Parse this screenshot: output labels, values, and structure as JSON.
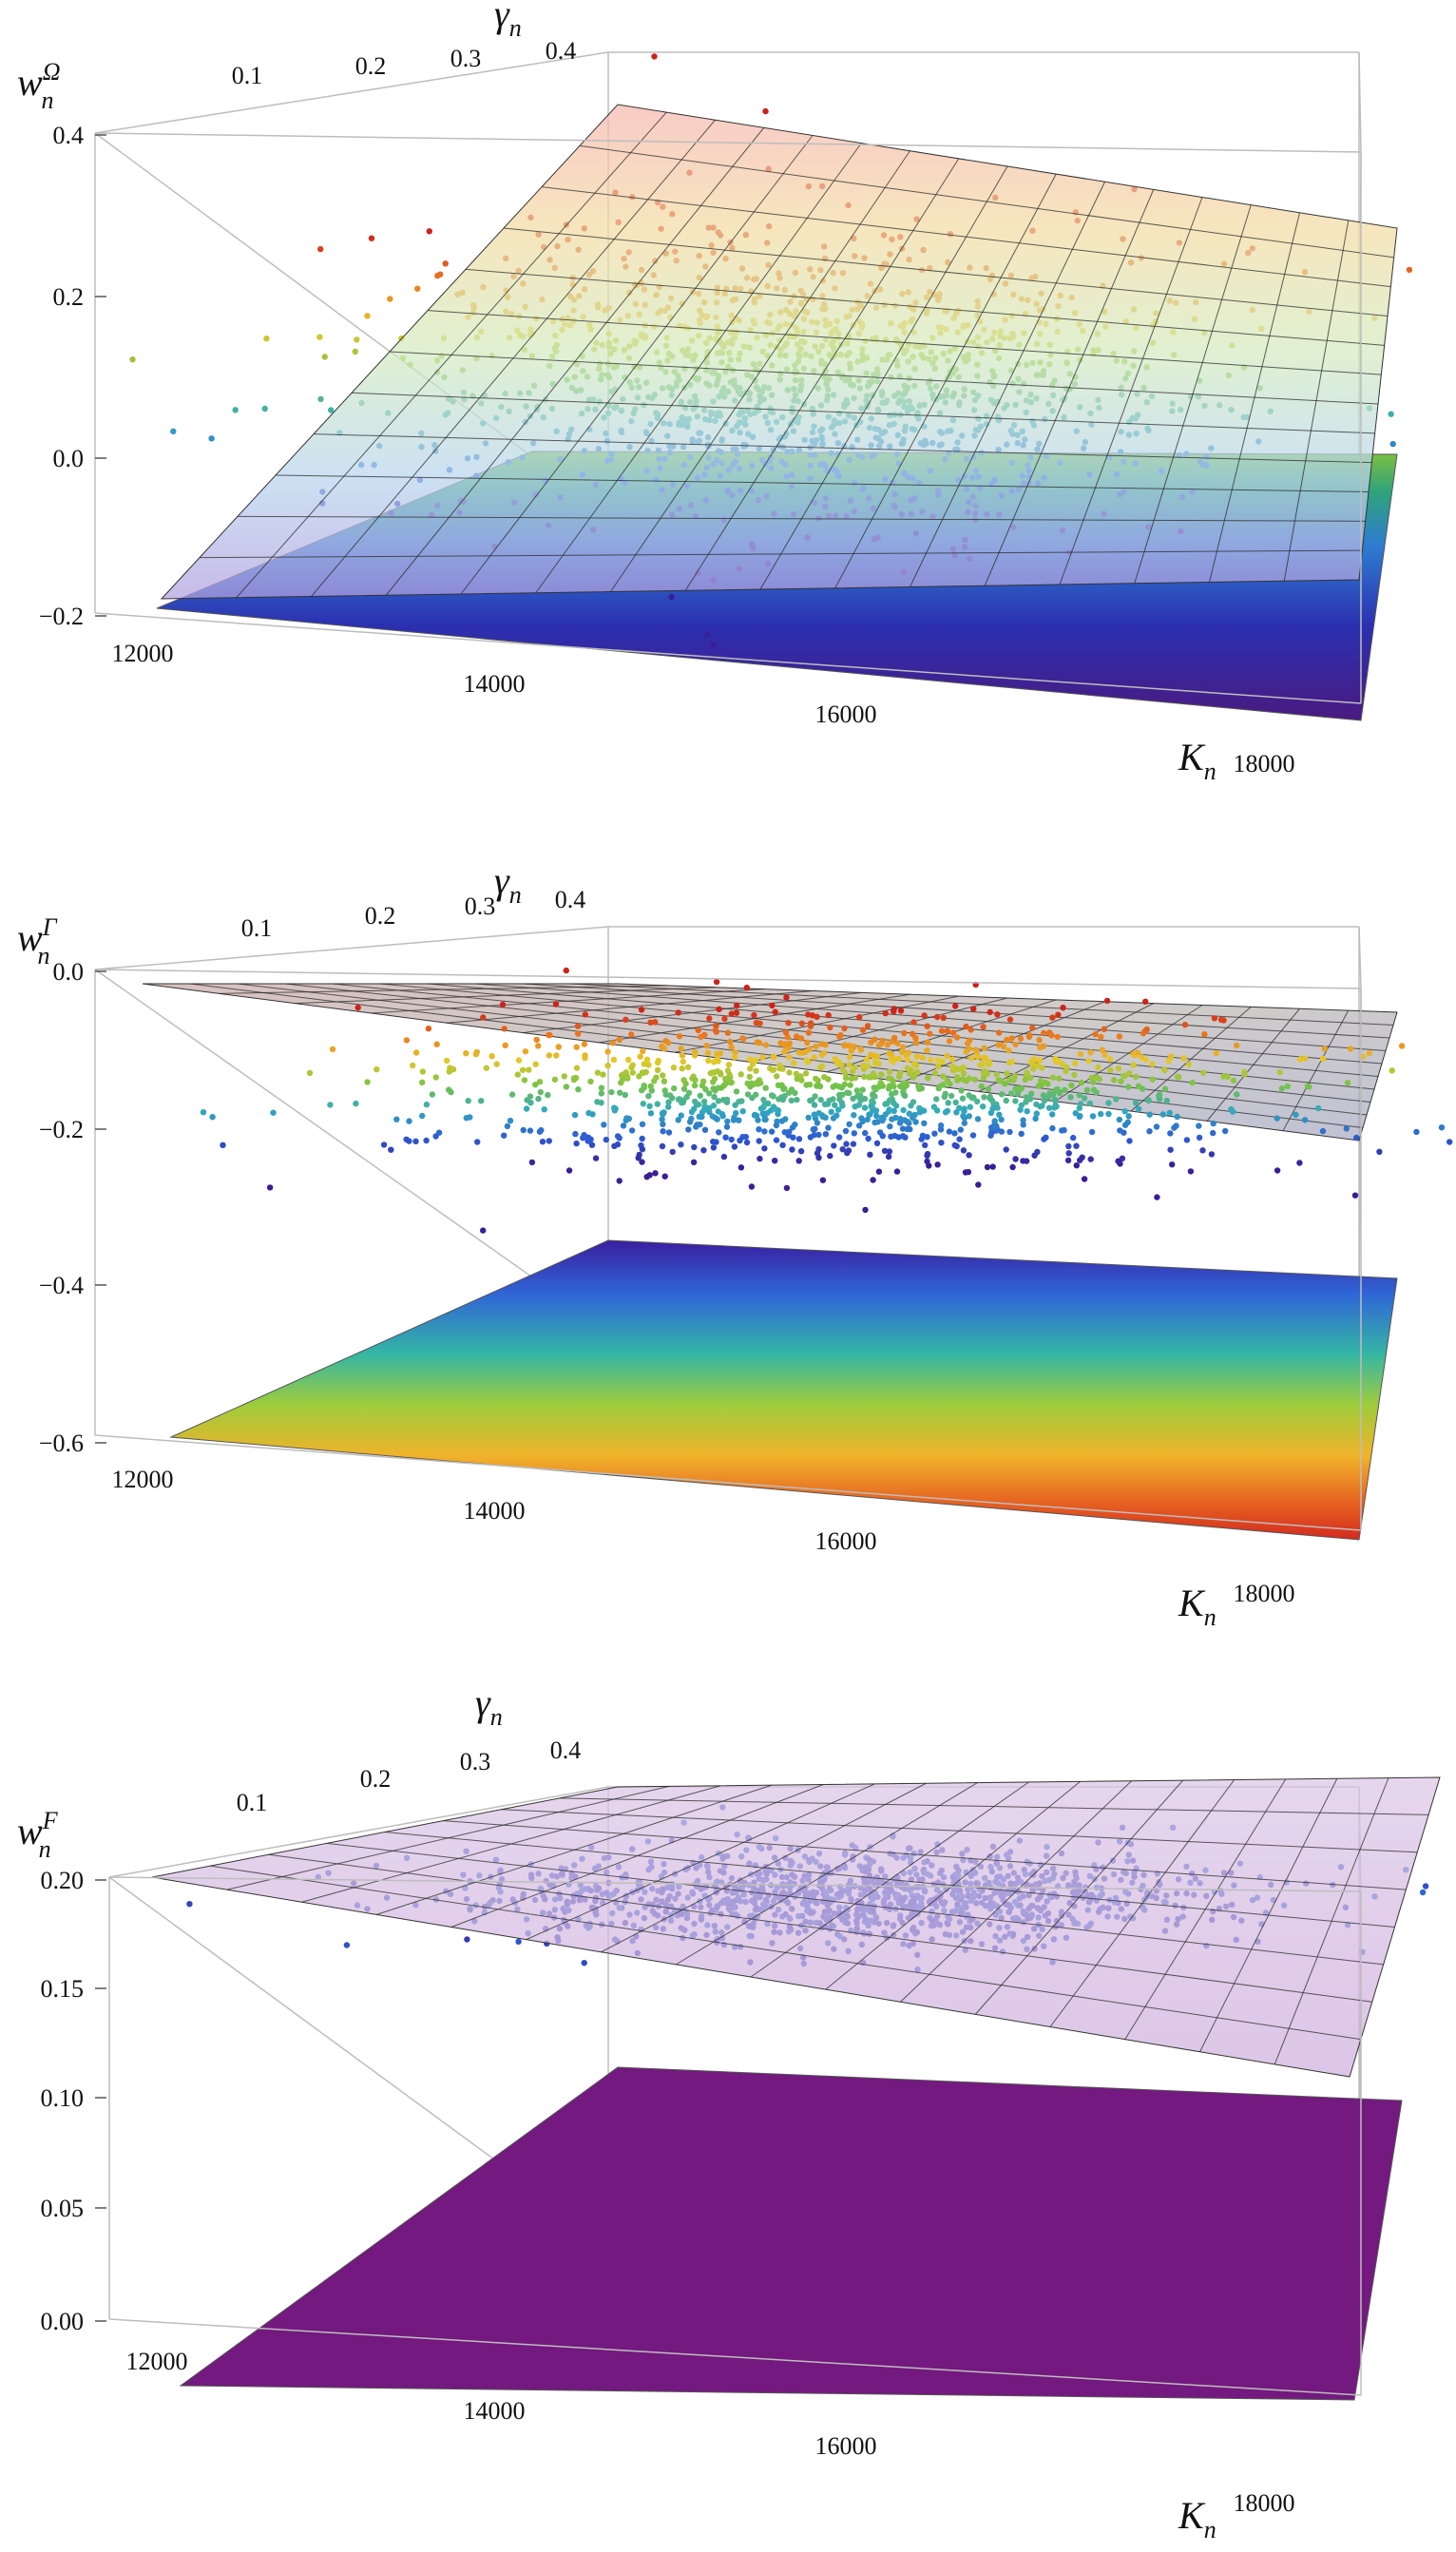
{
  "chart_data": [
    {
      "type": "scatter3d",
      "title": "",
      "zlabel_main": "w",
      "zlabel_sub": "n",
      "zlabel_sup": "Ω",
      "xlabel_main": "K",
      "xlabel_sub": "n",
      "ylabel_main": "γ",
      "ylabel_sub": "n",
      "x_ticks": [
        "12000",
        "14000",
        "16000",
        "18000"
      ],
      "x_tick_values": [
        12000,
        14000,
        16000,
        18000
      ],
      "y_ticks": [
        "0.1",
        "0.2",
        "0.3",
        "0.4"
      ],
      "y_tick_values": [
        0.1,
        0.2,
        0.3,
        0.4
      ],
      "z_ticks": [
        "0.4",
        "0.2",
        "0.0",
        "−0.2"
      ],
      "z_tick_values": [
        0.4,
        0.2,
        0.0,
        -0.2
      ],
      "xlim": [
        11900,
        18100
      ],
      "ylim": [
        0.05,
        0.45
      ],
      "zlim": [
        -0.2,
        0.4
      ],
      "surfaces": [
        {
          "name": "",
          "style": "mesh",
          "corners": {
            "x0y0": -0.2,
            "x1y0": 0.0,
            "x0y1": 0.37,
            "x1y1": 0.22
          }
        },
        {
          "name": "",
          "style": "flat",
          "corners": {
            "x0y0": -0.2,
            "x1y0": -0.2,
            "x0y1": 0.0,
            "x1y1": 0.0
          }
        }
      ],
      "scatter": {
        "center": [
          15000,
          0.28
        ],
        "z_range": [
          -0.1,
          0.25
        ],
        "count": 1400
      },
      "grid": false,
      "legend": "none"
    },
    {
      "type": "scatter3d",
      "title": "",
      "zlabel_main": "w",
      "zlabel_sub": "n",
      "zlabel_sup": "Γ",
      "xlabel_main": "K",
      "xlabel_sub": "n",
      "ylabel_main": "γ",
      "ylabel_sub": "n",
      "x_ticks": [
        "12000",
        "14000",
        "16000",
        "18000"
      ],
      "x_tick_values": [
        12000,
        14000,
        16000,
        18000
      ],
      "y_ticks": [
        "0.1",
        "0.2",
        "0.3",
        "0.4"
      ],
      "y_tick_values": [
        0.1,
        0.2,
        0.3,
        0.4
      ],
      "z_ticks": [
        "0.0",
        "−0.2",
        "−0.4",
        "−0.6"
      ],
      "z_tick_values": [
        0.0,
        -0.2,
        -0.4,
        -0.6
      ],
      "xlim": [
        11900,
        18100
      ],
      "ylim": [
        0.05,
        0.45
      ],
      "zlim": [
        -0.62,
        0.0
      ],
      "surfaces": [
        {
          "name": "",
          "style": "mesh",
          "corners": {
            "x0y0": -0.02,
            "x1y0": -0.17,
            "x0y1": -0.32,
            "x1y1": -0.1
          }
        },
        {
          "name": "",
          "style": "flat",
          "corners": {
            "x0y0": -0.6,
            "x1y0": -0.6,
            "x0y1": -0.38,
            "x1y1": -0.38
          }
        }
      ],
      "scatter": {
        "center": [
          15000,
          0.25
        ],
        "z_range": [
          -0.22,
          -0.04
        ],
        "count": 1200
      },
      "grid": false,
      "legend": "none"
    },
    {
      "type": "scatter3d",
      "title": "",
      "zlabel_main": "w",
      "zlabel_sub": "n",
      "zlabel_sup": "F",
      "xlabel_main": "K",
      "xlabel_sub": "n",
      "ylabel_main": "γ",
      "ylabel_sub": "n",
      "x_ticks": [
        "12000",
        "14000",
        "16000",
        "18000"
      ],
      "x_tick_values": [
        12000,
        14000,
        16000,
        18000
      ],
      "y_ticks": [
        "0.1",
        "0.2",
        "0.3",
        "0.4"
      ],
      "y_tick_values": [
        0.1,
        0.2,
        0.3,
        0.4
      ],
      "z_ticks": [
        "0.20",
        "0.15",
        "0.10",
        "0.05",
        "0.00"
      ],
      "z_tick_values": [
        0.2,
        0.15,
        0.1,
        0.05,
        0.0
      ],
      "xlim": [
        11900,
        18100
      ],
      "ylim": [
        0.05,
        0.45
      ],
      "zlim": [
        0.0,
        0.2
      ],
      "surfaces": [
        {
          "name": "",
          "style": "mesh",
          "corners": {
            "x0y0": 0.2,
            "x1y0": 0.2,
            "x0y1": 0.2,
            "x1y1": 0.2
          }
        },
        {
          "name": "",
          "style": "flat",
          "corners": {
            "x0y0": 0.0,
            "x1y0": 0.0,
            "x0y1": 0.1,
            "x1y1": 0.1
          }
        }
      ],
      "scatter": {
        "center": [
          15000,
          0.28
        ],
        "z_range": [
          0.195,
          0.205
        ],
        "count": 1200
      },
      "grid": false,
      "legend": "none"
    }
  ]
}
